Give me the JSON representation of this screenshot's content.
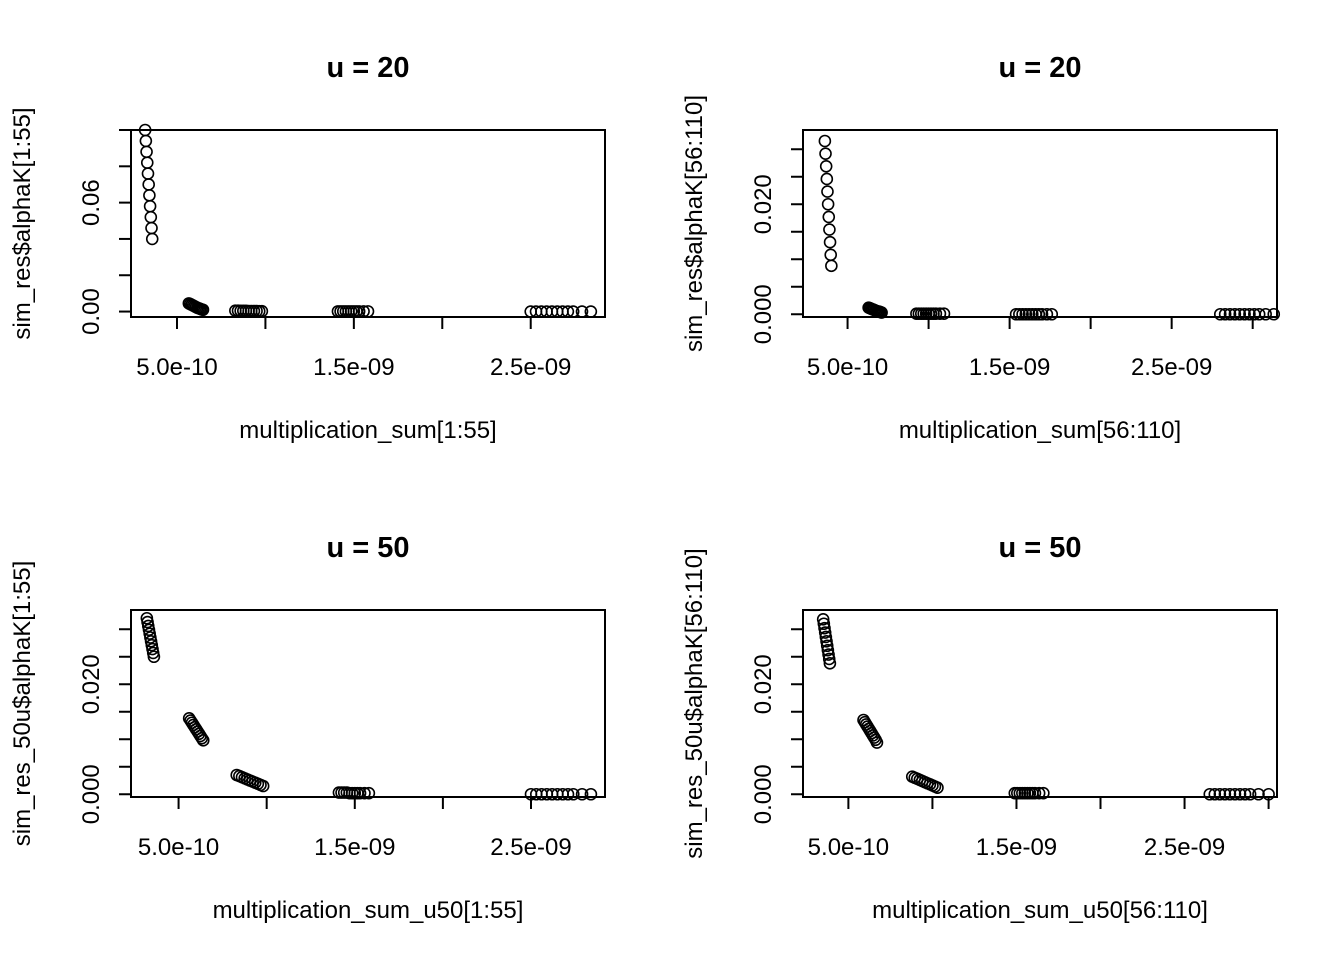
{
  "chart_data": [
    {
      "type": "scatter",
      "title": "u = 20",
      "xlabel": "multiplication_sum[1:55]",
      "ylabel": "sim_res$alphaK[1:55]",
      "xlim": [
        2.4e-10,
        2.92e-09
      ],
      "ylim": [
        -0.003,
        0.1
      ],
      "xticks": [
        5e-10,
        1e-09,
        1.5e-09,
        2e-09,
        2.5e-09
      ],
      "xtick_labels": [
        "5.0e-10",
        "",
        "1.5e-09",
        "",
        "2.5e-09"
      ],
      "yticks": [
        0,
        0.02,
        0.04,
        0.06,
        0.08,
        0.1
      ],
      "ytick_labels": [
        "0.00",
        "",
        "",
        "0.06",
        "",
        ""
      ],
      "x": [
        3.2e-10,
        3.24e-10,
        3.28e-10,
        3.32e-10,
        3.36e-10,
        3.4e-10,
        3.44e-10,
        3.48e-10,
        3.52e-10,
        3.56e-10,
        3.6e-10,
        5.67e-10,
        5.75e-10,
        5.83e-10,
        5.91e-10,
        5.99e-10,
        6.07e-10,
        6.15e-10,
        6.23e-10,
        6.31e-10,
        6.39e-10,
        6.47e-10,
        8.3e-10,
        8.45e-10,
        8.6e-10,
        8.75e-10,
        8.9e-10,
        9.05e-10,
        9.2e-10,
        9.35e-10,
        9.5e-10,
        9.65e-10,
        9.8e-10,
        1.41e-09,
        1.425e-09,
        1.44e-09,
        1.455e-09,
        1.47e-09,
        1.485e-09,
        1.5e-09,
        1.515e-09,
        1.53e-09,
        1.555e-09,
        1.58e-09,
        2.5e-09,
        2.53e-09,
        2.56e-09,
        2.59e-09,
        2.62e-09,
        2.65e-09,
        2.68e-09,
        2.71e-09,
        2.74e-09,
        2.79e-09,
        2.84e-09
      ],
      "y": [
        0.1,
        0.094,
        0.088,
        0.082,
        0.076,
        0.07,
        0.064,
        0.058,
        0.052,
        0.046,
        0.04,
        0.0045,
        0.0041,
        0.0037,
        0.0033,
        0.0029,
        0.0025,
        0.0021,
        0.0018,
        0.0015,
        0.0012,
        0.001,
        0.0005,
        0.0005,
        0.0004,
        0.0004,
        0.0004,
        0.0003,
        0.0003,
        0.0003,
        0.0003,
        0.0002,
        0.0002,
        0.0001,
        0.0001,
        0.0001,
        0.0001,
        0.0001,
        0.0001,
        0.0001,
        0.0001,
        0.0001,
        0.0001,
        0.0001,
        0,
        0,
        0,
        0,
        0,
        0,
        0,
        0,
        0,
        0,
        0
      ]
    },
    {
      "type": "scatter",
      "title": "u = 20",
      "xlabel": "multiplication_sum[56:110]",
      "ylabel": "sim_res$alphaK[56:110]",
      "xlim": [
        2.25e-10,
        3.15e-09
      ],
      "ylim": [
        -0.0005,
        0.0335
      ],
      "xticks": [
        5e-10,
        1e-09,
        1.5e-09,
        2e-09,
        2.5e-09,
        3e-09
      ],
      "xtick_labels": [
        "5.0e-10",
        "",
        "1.5e-09",
        "",
        "2.5e-09",
        ""
      ],
      "yticks": [
        0,
        0.005,
        0.01,
        0.015,
        0.02,
        0.025,
        0.03
      ],
      "ytick_labels": [
        "0.000",
        "",
        "",
        "",
        "0.020",
        "",
        ""
      ],
      "x": [
        3.6e-10,
        3.64e-10,
        3.68e-10,
        3.72e-10,
        3.76e-10,
        3.8e-10,
        3.84e-10,
        3.88e-10,
        3.92e-10,
        3.96e-10,
        4e-10,
        6.3e-10,
        6.38e-10,
        6.46e-10,
        6.54e-10,
        6.62e-10,
        6.7e-10,
        6.78e-10,
        6.86e-10,
        6.94e-10,
        7.02e-10,
        7.1e-10,
        9.25e-10,
        9.4e-10,
        9.55e-10,
        9.7e-10,
        9.85e-10,
        1e-09,
        1.015e-09,
        1.03e-09,
        1.045e-09,
        1.07e-09,
        1.095e-09,
        1.54e-09,
        1.56e-09,
        1.58e-09,
        1.6e-09,
        1.62e-09,
        1.64e-09,
        1.66e-09,
        1.68e-09,
        1.7e-09,
        1.73e-09,
        1.76e-09,
        2.8e-09,
        2.83e-09,
        2.86e-09,
        2.89e-09,
        2.92e-09,
        2.95e-09,
        2.98e-09,
        3.01e-09,
        3.04e-09,
        3.08e-09,
        3.13e-09
      ],
      "y": [
        0.0315,
        0.0292,
        0.0269,
        0.0246,
        0.0223,
        0.02,
        0.0177,
        0.0154,
        0.0131,
        0.0108,
        0.0088,
        0.0012,
        0.0011,
        0.001,
        0.0009,
        0.0008,
        0.0007,
        0.0006,
        0.0005,
        0.0005,
        0.0004,
        0.0003,
        0.0001,
        0.0001,
        0.0001,
        0.0001,
        0.0001,
        0.0001,
        0.0001,
        0.0001,
        0.0001,
        0.0001,
        0.0001,
        0,
        0,
        0,
        0,
        0,
        0,
        0,
        0,
        0,
        0,
        0,
        0,
        0,
        0,
        0,
        0,
        0,
        0,
        0,
        0,
        0,
        0
      ]
    },
    {
      "type": "scatter",
      "title": "u = 50",
      "xlabel": "multiplication_sum_u50[1:55]",
      "ylabel": "sim_res_50u$alphaK[1:55]",
      "xlim": [
        2.3e-10,
        2.92e-09
      ],
      "ylim": [
        -0.0005,
        0.0335
      ],
      "xticks": [
        5e-10,
        1e-09,
        1.5e-09,
        2e-09,
        2.5e-09
      ],
      "xtick_labels": [
        "5.0e-10",
        "",
        "1.5e-09",
        "",
        "2.5e-09"
      ],
      "yticks": [
        0,
        0.005,
        0.01,
        0.015,
        0.02,
        0.025,
        0.03
      ],
      "ytick_labels": [
        "0.000",
        "",
        "",
        "",
        "0.020",
        "",
        ""
      ],
      "x": [
        3.2e-10,
        3.24e-10,
        3.28e-10,
        3.32e-10,
        3.36e-10,
        3.4e-10,
        3.44e-10,
        3.48e-10,
        3.52e-10,
        3.56e-10,
        3.6e-10,
        5.6e-10,
        5.68e-10,
        5.76e-10,
        5.84e-10,
        5.92e-10,
        6e-10,
        6.08e-10,
        6.16e-10,
        6.24e-10,
        6.32e-10,
        6.4e-10,
        8.3e-10,
        8.45e-10,
        8.6e-10,
        8.75e-10,
        8.9e-10,
        9.05e-10,
        9.2e-10,
        9.35e-10,
        9.5e-10,
        9.65e-10,
        9.8e-10,
        1.41e-09,
        1.425e-09,
        1.44e-09,
        1.455e-09,
        1.47e-09,
        1.485e-09,
        1.5e-09,
        1.515e-09,
        1.53e-09,
        1.555e-09,
        1.58e-09,
        2.5e-09,
        2.53e-09,
        2.56e-09,
        2.59e-09,
        2.62e-09,
        2.65e-09,
        2.68e-09,
        2.71e-09,
        2.74e-09,
        2.79e-09,
        2.84e-09
      ],
      "y": [
        0.032,
        0.0313,
        0.0306,
        0.0299,
        0.0292,
        0.0285,
        0.0278,
        0.0271,
        0.0264,
        0.0257,
        0.025,
        0.0138,
        0.0134,
        0.013,
        0.0126,
        0.0122,
        0.0118,
        0.0114,
        0.011,
        0.0106,
        0.0102,
        0.0098,
        0.0035,
        0.0033,
        0.0031,
        0.0029,
        0.0027,
        0.0025,
        0.0023,
        0.0021,
        0.0019,
        0.0017,
        0.0015,
        0.0003,
        0.0003,
        0.0003,
        0.0003,
        0.0002,
        0.0002,
        0.0002,
        0.0002,
        0.0002,
        0.0002,
        0.0002,
        0,
        0,
        0,
        0,
        0,
        0,
        0,
        0,
        0,
        0,
        0
      ]
    },
    {
      "type": "scatter",
      "title": "u = 50",
      "xlabel": "multiplication_sum_u50[56:110]",
      "ylabel": "sim_res_50u$alphaK[56:110]",
      "xlim": [
        2.3e-10,
        3.05e-09
      ],
      "ylim": [
        -0.0005,
        0.0335
      ],
      "xticks": [
        5e-10,
        1e-09,
        1.5e-09,
        2e-09,
        2.5e-09,
        3e-09
      ],
      "xtick_labels": [
        "5.0e-10",
        "",
        "1.5e-09",
        "",
        "2.5e-09",
        ""
      ],
      "yticks": [
        0,
        0.005,
        0.01,
        0.015,
        0.02,
        0.025,
        0.03
      ],
      "ytick_labels": [
        "0.000",
        "",
        "",
        "",
        "0.020",
        "",
        ""
      ],
      "x": [
        3.5e-10,
        3.54e-10,
        3.58e-10,
        3.62e-10,
        3.66e-10,
        3.7e-10,
        3.74e-10,
        3.78e-10,
        3.82e-10,
        3.86e-10,
        3.9e-10,
        5.9e-10,
        5.98e-10,
        6.06e-10,
        6.14e-10,
        6.22e-10,
        6.3e-10,
        6.38e-10,
        6.46e-10,
        6.54e-10,
        6.62e-10,
        6.7e-10,
        8.8e-10,
        8.95e-10,
        9.1e-10,
        9.25e-10,
        9.4e-10,
        9.55e-10,
        9.7e-10,
        9.85e-10,
        1e-09,
        1.015e-09,
        1.03e-09,
        1.49e-09,
        1.505e-09,
        1.52e-09,
        1.535e-09,
        1.55e-09,
        1.565e-09,
        1.58e-09,
        1.595e-09,
        1.61e-09,
        1.635e-09,
        1.66e-09,
        2.65e-09,
        2.68e-09,
        2.71e-09,
        2.74e-09,
        2.77e-09,
        2.8e-09,
        2.83e-09,
        2.86e-09,
        2.89e-09,
        2.94e-09,
        3e-09
      ],
      "y": [
        0.0318,
        0.031,
        0.0302,
        0.0294,
        0.0286,
        0.0278,
        0.027,
        0.0262,
        0.0254,
        0.0246,
        0.0238,
        0.0135,
        0.0131,
        0.0127,
        0.0123,
        0.0119,
        0.0115,
        0.0111,
        0.0107,
        0.0103,
        0.0099,
        0.0094,
        0.0032,
        0.003,
        0.0028,
        0.0026,
        0.0024,
        0.0022,
        0.002,
        0.0018,
        0.0016,
        0.0014,
        0.0012,
        0.0002,
        0.0002,
        0.0002,
        0.0002,
        0.0002,
        0.0002,
        0.0002,
        0.0002,
        0.0002,
        0.0002,
        0.0002,
        0,
        0,
        0,
        0,
        0,
        0,
        0,
        0,
        0,
        0,
        0
      ]
    }
  ]
}
